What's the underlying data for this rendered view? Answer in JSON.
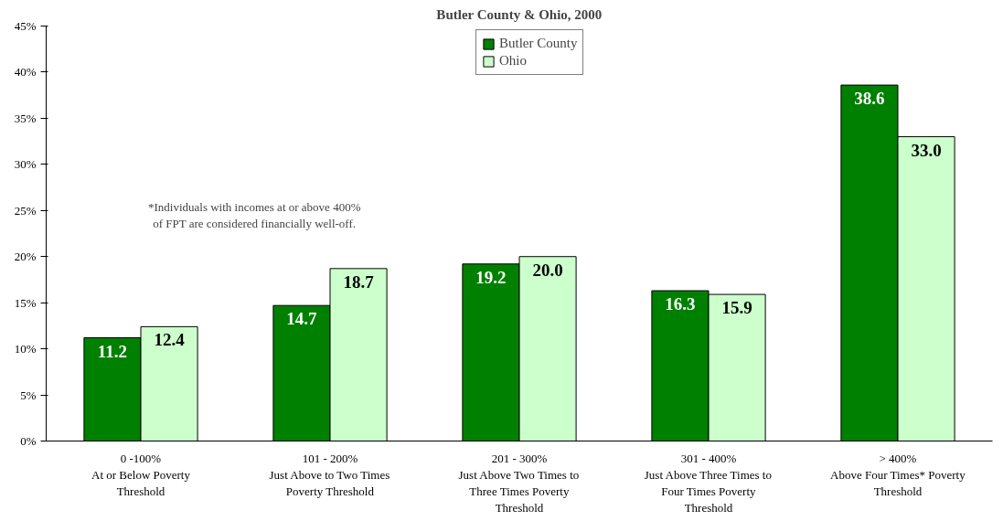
{
  "chart_data": {
    "type": "bar",
    "title": "Butler County & Ohio, 2000",
    "categories": [
      "0 -100%\nAt or Below Poverty\nThreshold",
      "101 - 200%\nJust Above to Two Times\nPoverty Threshold",
      "201 - 300%\nJust Above Two Times to\nThree Times Poverty\nThreshold",
      "301 - 400%\nJust Above Three Times to\nFour Times Poverty\nThreshold",
      "> 400%\nAbove Four Times* Poverty\nThreshold"
    ],
    "series": [
      {
        "name": "Butler County",
        "color": "#008000",
        "values": [
          11.2,
          14.7,
          19.2,
          16.3,
          38.6
        ],
        "value_labels": [
          "11.2",
          "14.7",
          "19.2",
          "16.3",
          "38.6"
        ]
      },
      {
        "name": "Ohio",
        "color": "#ccffcc",
        "values": [
          12.4,
          18.7,
          20.0,
          15.9,
          33.0
        ],
        "value_labels": [
          "12.4",
          "18.7",
          "20.0",
          "15.9",
          "33.0"
        ]
      }
    ],
    "ylim": [
      0,
      45
    ],
    "yticks": [
      {
        "value": 0,
        "label": "0%"
      },
      {
        "value": 5,
        "label": "5%"
      },
      {
        "value": 10,
        "label": "10%"
      },
      {
        "value": 15,
        "label": "15%"
      },
      {
        "value": 20,
        "label": "20%"
      },
      {
        "value": 25,
        "label": "25%"
      },
      {
        "value": 30,
        "label": "30%"
      },
      {
        "value": 35,
        "label": "35%"
      },
      {
        "value": 40,
        "label": "40%"
      },
      {
        "value": 45,
        "label": "45%"
      }
    ],
    "legend": "top",
    "grid": false,
    "annotations": [
      "*Individuals with incomes at or above 400%\nof FPT are considered financially well-off."
    ]
  }
}
